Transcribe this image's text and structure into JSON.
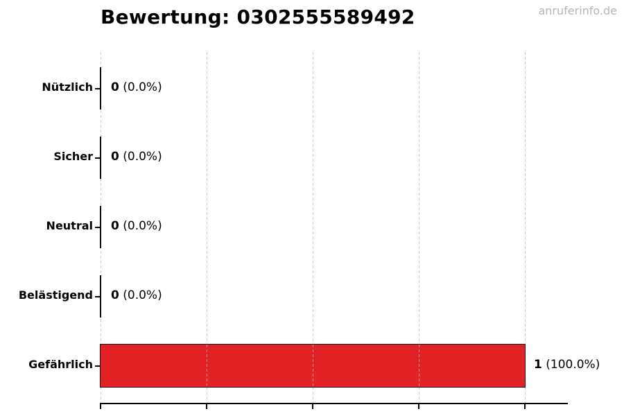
{
  "watermark": "anruferinfo.de",
  "chart_data": {
    "type": "bar",
    "orientation": "horizontal",
    "title": "Bewertung: 0302555589492",
    "categories": [
      "Nützlich",
      "Sicher",
      "Neutral",
      "Belästigend",
      "Gefährlich"
    ],
    "values": [
      0,
      0,
      0,
      0,
      1
    ],
    "total_votes": 1,
    "rows": [
      {
        "label": "Nützlich",
        "value": 0,
        "count": "0",
        "pct": "(0.0%)"
      },
      {
        "label": "Sicher",
        "value": 0,
        "count": "0",
        "pct": "(0.0%)"
      },
      {
        "label": "Neutral",
        "value": 0,
        "count": "0",
        "pct": "(0.0%)"
      },
      {
        "label": "Belästigend",
        "value": 0,
        "count": "0",
        "pct": "(0.0%)"
      },
      {
        "label": "Gefährlich",
        "value": 1,
        "count": "1",
        "pct": "(100.0%)"
      }
    ],
    "xlabel": "",
    "ylabel": "",
    "xlim": [
      0,
      1.1
    ],
    "xticks": [
      0,
      0.25,
      0.5,
      0.75,
      1.0
    ],
    "xtick_labels": [
      "",
      "",
      "",
      "",
      ""
    ],
    "grid": "vertical-dashed",
    "legend": "none",
    "colors": {
      "bar_fill": "#e32226",
      "bar_edge": "#141414",
      "grid": "#cccccc",
      "axis": "#000000",
      "title": "#000000",
      "watermark": "#b5b5b5"
    }
  }
}
